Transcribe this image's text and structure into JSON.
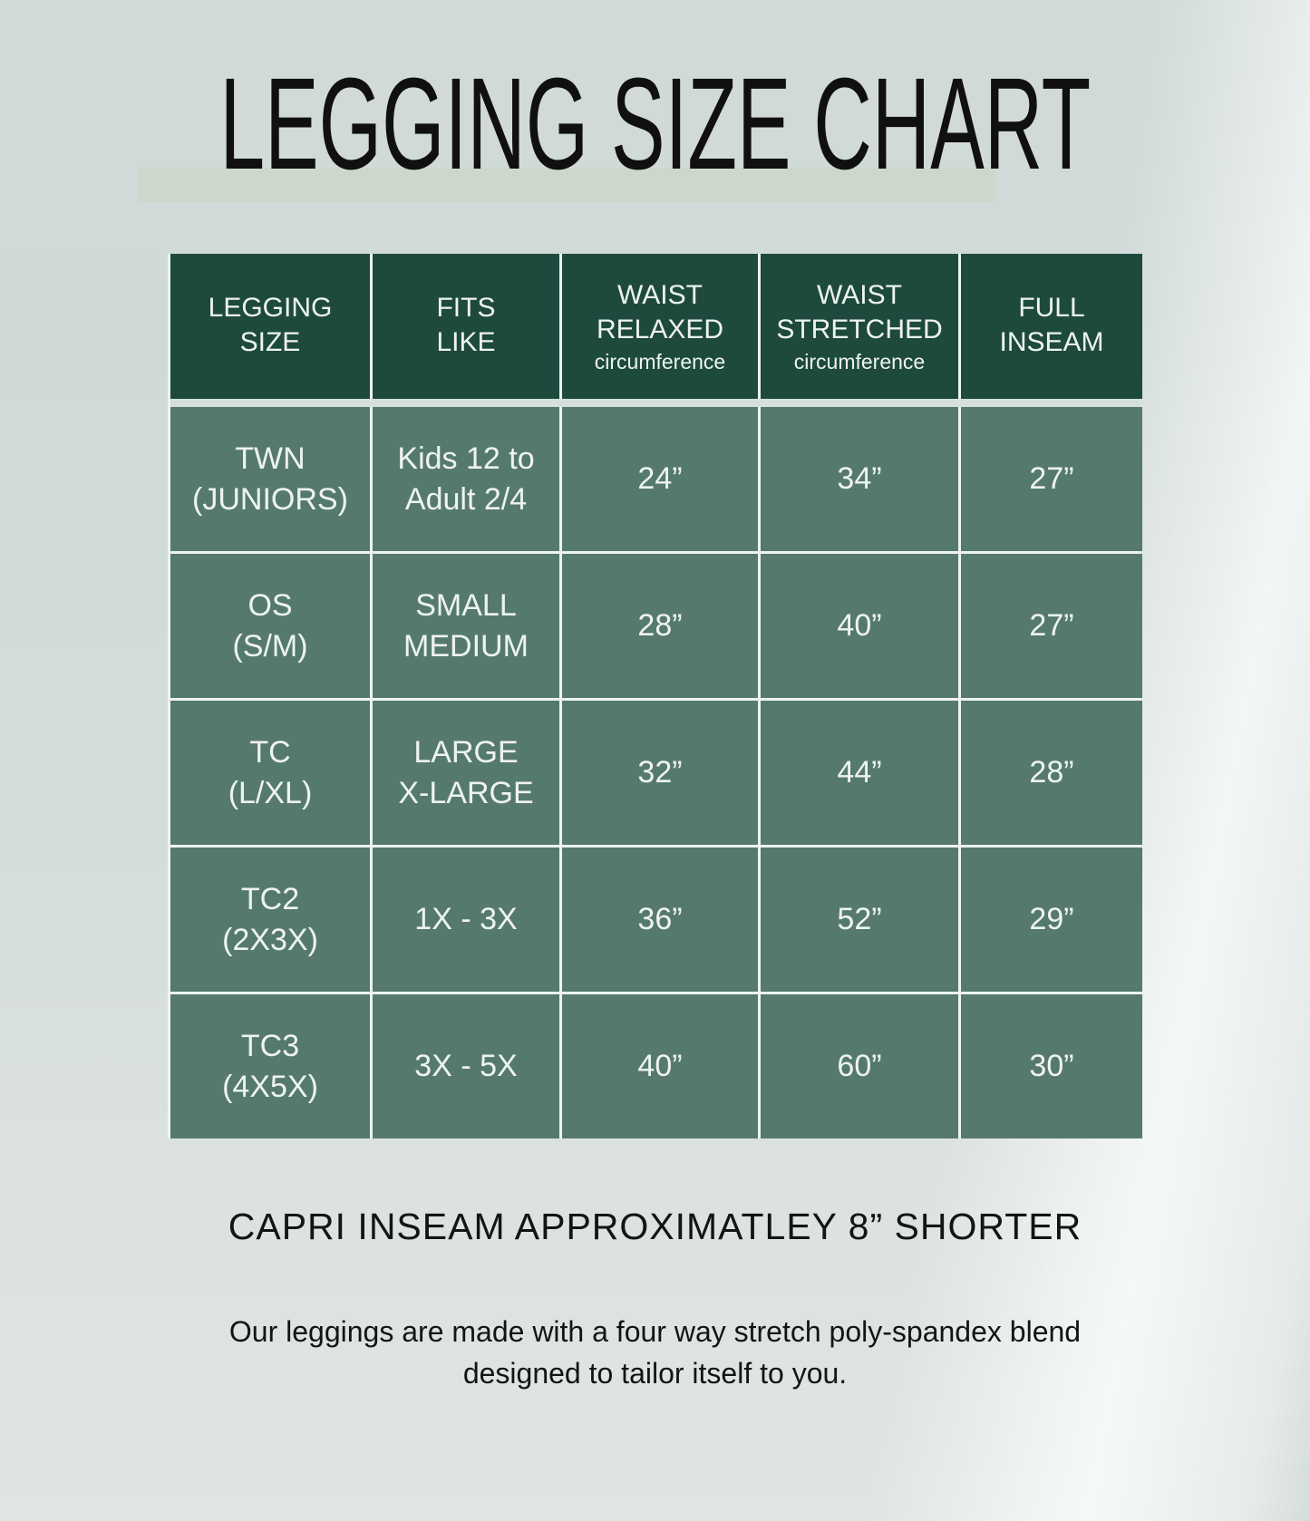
{
  "colors": {
    "header_bg": "#1e4a3e",
    "cell_bg": "#557a6d",
    "grid_line": "#edf3f0",
    "header_band": "#d5dfdc",
    "title_highlight": "#ccd8cb",
    "table_text": "#eef3f0",
    "title_text": "#101010",
    "text": "#141414"
  },
  "chart_data": {
    "type": "table",
    "title": "LEGGING SIZE CHART",
    "columns": [
      {
        "label": "LEGGING\nSIZE",
        "sub": ""
      },
      {
        "label": "FITS\nLIKE",
        "sub": ""
      },
      {
        "label": "WAIST\nRELAXED",
        "sub": "circumference"
      },
      {
        "label": "WAIST\nSTRETCHED",
        "sub": "circumference"
      },
      {
        "label": "FULL\nINSEAM",
        "sub": ""
      }
    ],
    "rows": [
      {
        "cells": [
          "TWN\n(JUNIORS)",
          "Kids 12 to\nAdult 2/4",
          "24”",
          "34”",
          "27”"
        ]
      },
      {
        "cells": [
          "OS\n(S/M)",
          "SMALL\nMEDIUM",
          "28”",
          "40”",
          "27”"
        ]
      },
      {
        "cells": [
          "TC\n(L/XL)",
          "LARGE\nX-LARGE",
          "32”",
          "44”",
          "28”"
        ]
      },
      {
        "cells": [
          "TC2\n(2X3X)",
          "1X - 3X",
          "36”",
          "52”",
          "29”"
        ]
      },
      {
        "cells": [
          "TC3\n(4X5X)",
          "3X - 5X",
          "40”",
          "60”",
          "30”"
        ]
      }
    ],
    "notes": [
      "CAPRI INSEAM APPROXIMATLEY 8” SHORTER",
      "Our leggings are made with a four way stretch poly-spandex blend designed to tailor itself to you."
    ]
  },
  "footer": {
    "capri_note": "CAPRI INSEAM APPROXIMATLEY 8” SHORTER",
    "description": "Our leggings are made with a four way stretch poly-spandex blend\ndesigned to tailor itself to you."
  }
}
